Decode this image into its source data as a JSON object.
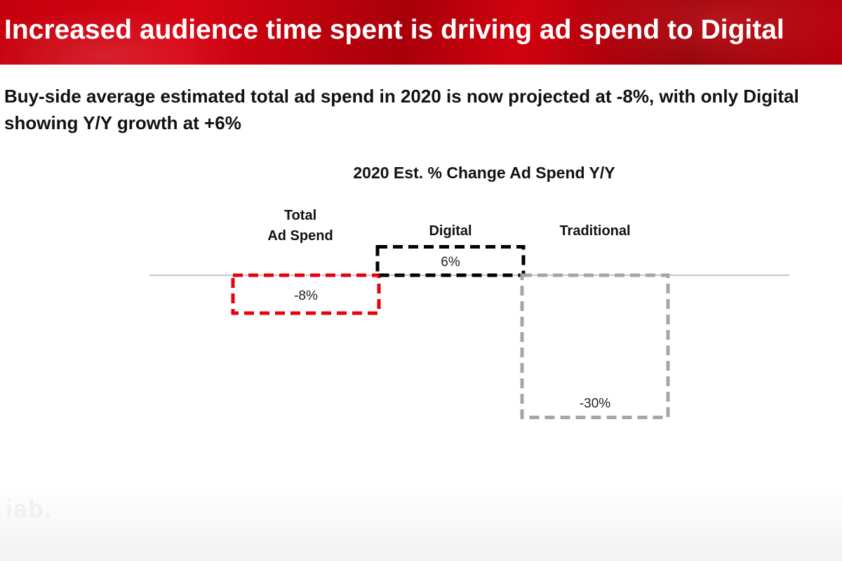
{
  "header": {
    "title": "Increased audience time spent is driving ad spend to Digital"
  },
  "subtitle": "Buy-side average estimated total ad spend in 2020 is now projected at -8%, with only Digital showing Y/Y growth at +6%",
  "footer": {
    "logo_text": "iab."
  },
  "colors": {
    "banner_red": "#c4000c",
    "total_series": "#e8000d",
    "digital_series": "#000000",
    "traditional_series": "#a6a6a6",
    "baseline": "#8c8c8c"
  },
  "chart_data": {
    "type": "bar",
    "style": "waterfall-dashed-outline",
    "title": "2020 Est. % Change Ad Spend Y/Y",
    "categories": [
      "Total\nAd Spend",
      "Digital",
      "Traditional"
    ],
    "values": [
      -8,
      6,
      -30
    ],
    "data_labels": [
      "-8%",
      "6%",
      "-30%"
    ],
    "unit": "%",
    "xlabel": "",
    "ylabel": "",
    "ylim": [
      -30,
      6
    ],
    "grid": false,
    "legend": "none"
  }
}
